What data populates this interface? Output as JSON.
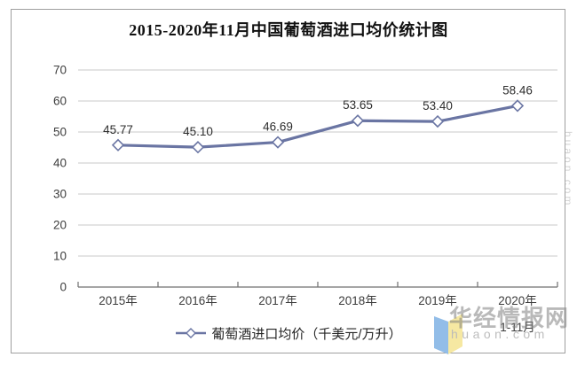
{
  "chart_data": {
    "type": "line",
    "title": "2015-2020年11月中国葡萄酒进口均价统计图",
    "categories": [
      "2015年",
      "2016年",
      "2017年",
      "2018年",
      "2019年",
      "2020年"
    ],
    "last_category_note": "1-11月",
    "series": [
      {
        "name": "葡萄酒进口均价（千美元/万升）",
        "values": [
          45.77,
          45.1,
          46.69,
          53.65,
          53.4,
          58.46
        ]
      }
    ],
    "ylim": [
      0,
      70
    ],
    "yticks": [
      0,
      10,
      20,
      30,
      40,
      50,
      60,
      70
    ],
    "grid": true,
    "legend_position": "bottom",
    "marker": "diamond-white",
    "line_color": "#6a75a3",
    "marker_fill": "#ffffff",
    "gridline_color": "#c9c9c9",
    "axis_color": "#6f6f6f",
    "label_color": "#3d3d3d",
    "data_label_color": "#2e2e2e"
  },
  "watermark": {
    "brand": "华经情报网",
    "site": "huaon.com",
    "side_site": "huaon.com",
    "ribbon_blue": "#92bde8",
    "ribbon_yellow": "#f6e8a2"
  }
}
